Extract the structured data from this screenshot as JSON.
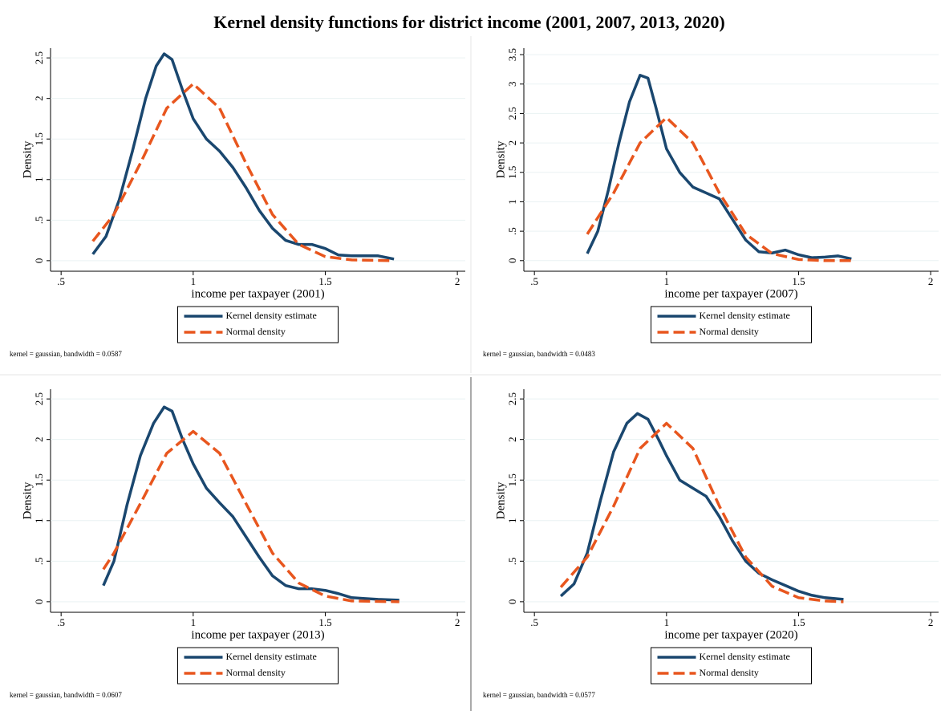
{
  "title": "Kernel density functions for district income (2001, 2007, 2013, 2020)",
  "chart_data": [
    {
      "type": "line",
      "xlabel": "income per taxpayer (2001)",
      "ylabel": "Density",
      "note": "kernel = gaussian, bandwidth = 0.0587",
      "xlim": [
        0.46,
        2.03
      ],
      "ylim": [
        -0.13,
        2.62
      ],
      "grid": true,
      "xticks": [
        {
          "value": 0.5,
          "label": ".5"
        },
        1,
        1.5,
        2
      ],
      "yticks": [
        0,
        {
          "value": 0.5,
          "label": ".5"
        },
        1,
        1.5,
        2,
        2.5
      ],
      "series": [
        {
          "name": "Kernel density estimate",
          "color": "#1a476f",
          "style": "solid",
          "x": [
            0.62,
            0.67,
            0.72,
            0.77,
            0.82,
            0.86,
            0.89,
            0.92,
            0.96,
            1.0,
            1.05,
            1.1,
            1.15,
            1.2,
            1.25,
            1.3,
            1.35,
            1.4,
            1.45,
            1.5,
            1.55,
            1.6,
            1.65,
            1.7,
            1.76
          ],
          "values": [
            0.08,
            0.3,
            0.75,
            1.35,
            2.0,
            2.4,
            2.55,
            2.48,
            2.1,
            1.75,
            1.5,
            1.35,
            1.15,
            0.9,
            0.62,
            0.4,
            0.25,
            0.2,
            0.2,
            0.15,
            0.07,
            0.06,
            0.06,
            0.06,
            0.02
          ]
        },
        {
          "name": "Normal density",
          "color": "#e8561e",
          "style": "dashed",
          "x": [
            0.62,
            0.7,
            0.8,
            0.9,
            1.0,
            1.1,
            1.2,
            1.3,
            1.4,
            1.5,
            1.6,
            1.76
          ],
          "values": [
            0.24,
            0.57,
            1.2,
            1.88,
            2.18,
            1.88,
            1.2,
            0.57,
            0.2,
            0.05,
            0.01,
            0.0
          ]
        }
      ]
    },
    {
      "type": "line",
      "xlabel": "income per taxpayer (2007)",
      "ylabel": "Density",
      "note": "kernel = gaussian, bandwidth = 0.0483",
      "xlim": [
        0.46,
        2.03
      ],
      "ylim": [
        -0.18,
        3.61
      ],
      "grid": true,
      "xticks": [
        {
          "value": 0.5,
          "label": ".5"
        },
        1,
        1.5,
        2
      ],
      "yticks": [
        0,
        {
          "value": 0.5,
          "label": ".5"
        },
        1,
        1.5,
        2,
        2.5,
        3,
        3.5
      ],
      "series": [
        {
          "name": "Kernel density estimate",
          "color": "#1a476f",
          "style": "solid",
          "x": [
            0.7,
            0.74,
            0.78,
            0.82,
            0.86,
            0.9,
            0.93,
            0.96,
            1.0,
            1.05,
            1.1,
            1.15,
            1.2,
            1.25,
            1.3,
            1.35,
            1.4,
            1.45,
            1.5,
            1.55,
            1.6,
            1.65,
            1.7
          ],
          "values": [
            0.12,
            0.5,
            1.2,
            2.0,
            2.7,
            3.15,
            3.1,
            2.6,
            1.9,
            1.5,
            1.25,
            1.15,
            1.05,
            0.7,
            0.35,
            0.15,
            0.13,
            0.18,
            0.1,
            0.05,
            0.06,
            0.08,
            0.03
          ]
        },
        {
          "name": "Normal density",
          "color": "#e8561e",
          "style": "dashed",
          "x": [
            0.7,
            0.8,
            0.9,
            1.0,
            1.1,
            1.2,
            1.3,
            1.4,
            1.5,
            1.6,
            1.7
          ],
          "values": [
            0.45,
            1.15,
            2.0,
            2.43,
            2.0,
            1.15,
            0.45,
            0.12,
            0.02,
            0.0,
            0.0
          ]
        }
      ]
    },
    {
      "type": "line",
      "xlabel": "income per taxpayer (2013)",
      "ylabel": "Density",
      "note": "kernel = gaussian, bandwidth = 0.0607",
      "xlim": [
        0.46,
        2.03
      ],
      "ylim": [
        -0.13,
        2.62
      ],
      "grid": true,
      "xticks": [
        {
          "value": 0.5,
          "label": ".5"
        },
        1,
        1.5,
        2
      ],
      "yticks": [
        0,
        {
          "value": 0.5,
          "label": ".5"
        },
        1,
        1.5,
        2,
        2.5
      ],
      "series": [
        {
          "name": "Kernel density estimate",
          "color": "#1a476f",
          "style": "solid",
          "x": [
            0.66,
            0.7,
            0.75,
            0.8,
            0.85,
            0.89,
            0.92,
            0.96,
            1.0,
            1.05,
            1.1,
            1.15,
            1.2,
            1.25,
            1.3,
            1.35,
            1.4,
            1.45,
            1.5,
            1.55,
            1.6,
            1.65,
            1.7,
            1.78
          ],
          "values": [
            0.2,
            0.5,
            1.2,
            1.8,
            2.2,
            2.4,
            2.35,
            2.0,
            1.7,
            1.4,
            1.22,
            1.05,
            0.8,
            0.55,
            0.32,
            0.2,
            0.16,
            0.16,
            0.14,
            0.1,
            0.05,
            0.04,
            0.03,
            0.02
          ]
        },
        {
          "name": "Normal density",
          "color": "#e8561e",
          "style": "dashed",
          "x": [
            0.66,
            0.7,
            0.8,
            0.9,
            1.0,
            1.1,
            1.2,
            1.3,
            1.4,
            1.5,
            1.6,
            1.78
          ],
          "values": [
            0.4,
            0.6,
            1.21,
            1.83,
            2.1,
            1.83,
            1.21,
            0.6,
            0.23,
            0.07,
            0.01,
            0.0
          ]
        }
      ]
    },
    {
      "type": "line",
      "xlabel": "income per taxpayer (2020)",
      "ylabel": "Density",
      "note": "kernel = gaussian, bandwidth = 0.0577",
      "xlim": [
        0.46,
        2.03
      ],
      "ylim": [
        -0.13,
        2.62
      ],
      "grid": true,
      "xticks": [
        {
          "value": 0.5,
          "label": ".5"
        },
        1,
        1.5,
        2
      ],
      "yticks": [
        0,
        {
          "value": 0.5,
          "label": ".5"
        },
        1,
        1.5,
        2,
        2.5
      ],
      "series": [
        {
          "name": "Kernel density estimate",
          "color": "#1a476f",
          "style": "solid",
          "x": [
            0.6,
            0.65,
            0.7,
            0.75,
            0.8,
            0.85,
            0.89,
            0.93,
            0.97,
            1.0,
            1.05,
            1.1,
            1.15,
            1.2,
            1.25,
            1.3,
            1.35,
            1.4,
            1.45,
            1.5,
            1.55,
            1.6,
            1.67
          ],
          "values": [
            0.07,
            0.22,
            0.6,
            1.25,
            1.85,
            2.2,
            2.32,
            2.25,
            2.0,
            1.8,
            1.5,
            1.4,
            1.3,
            1.05,
            0.75,
            0.5,
            0.35,
            0.27,
            0.2,
            0.13,
            0.08,
            0.05,
            0.03
          ]
        },
        {
          "name": "Normal density",
          "color": "#e8561e",
          "style": "dashed",
          "x": [
            0.6,
            0.7,
            0.8,
            0.9,
            1.0,
            1.1,
            1.2,
            1.3,
            1.4,
            1.5,
            1.6,
            1.67
          ],
          "values": [
            0.18,
            0.55,
            1.18,
            1.89,
            2.2,
            1.89,
            1.18,
            0.55,
            0.19,
            0.05,
            0.01,
            0.0
          ]
        }
      ]
    }
  ]
}
